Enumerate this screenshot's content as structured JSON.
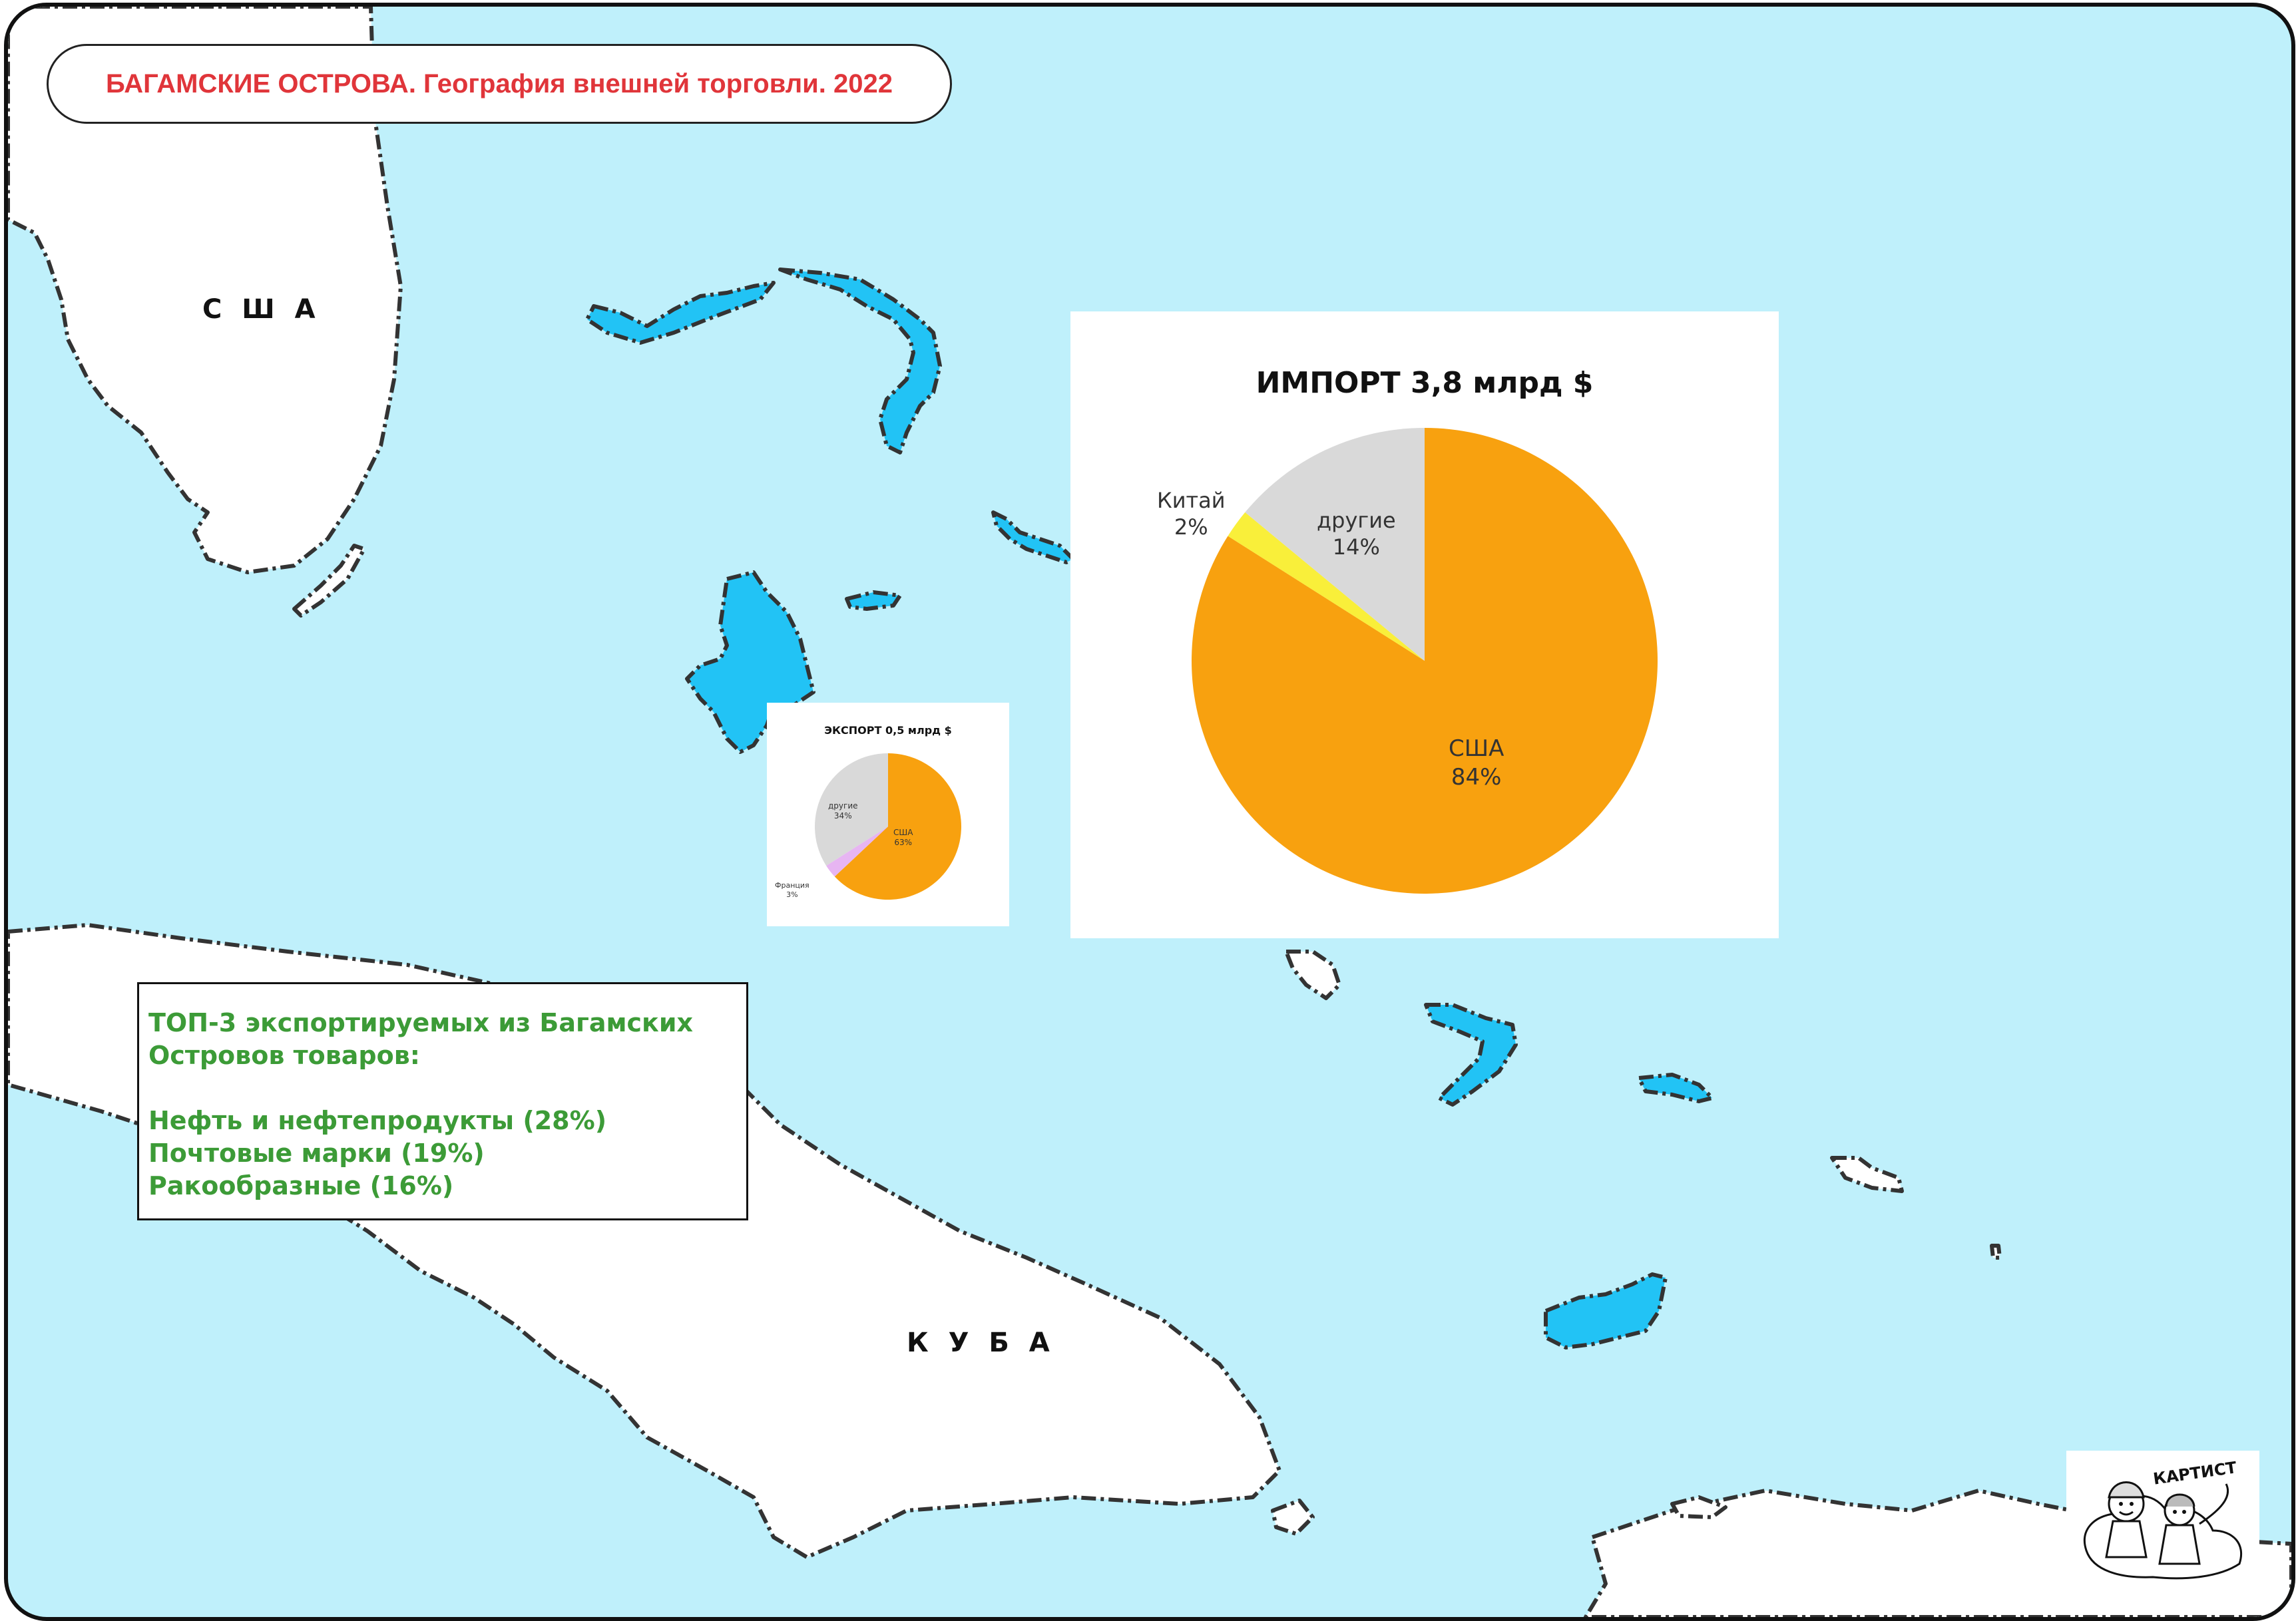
{
  "title": "БАГАМСКИЕ ОСТРОВА. География внешней торговли. 2022",
  "countries": {
    "usa": "С Ш А",
    "cuba": "К У Б А"
  },
  "export_chart": {
    "title": "ЭКСПОРТ 0,5 млрд $",
    "slices": [
      {
        "name": "США",
        "value": 63,
        "label": "63%",
        "color": "#f8a10f"
      },
      {
        "name": "Франция",
        "value": 3,
        "label": "3%",
        "color": "#e7b5f2"
      },
      {
        "name": "другие",
        "value": 34,
        "label": "34%",
        "color": "#d9d9d9"
      }
    ]
  },
  "import_chart": {
    "title": "ИМПОРТ 3,8 млрд $",
    "slices": [
      {
        "name": "США",
        "value": 84,
        "label": "84%",
        "color": "#f8a10f"
      },
      {
        "name": "Китай",
        "value": 2,
        "label": "2%",
        "color": "#f9ef3a"
      },
      {
        "name": "другие",
        "value": 14,
        "label": "14%",
        "color": "#d9d9d9"
      }
    ]
  },
  "chart_data": [
    {
      "type": "pie",
      "title": "ЭКСПОРТ 0,5 млрд $",
      "categories": [
        "США",
        "Франция",
        "другие"
      ],
      "values": [
        63,
        3,
        34
      ]
    },
    {
      "type": "pie",
      "title": "ИМПОРТ 3,8 млрд $",
      "categories": [
        "США",
        "Китай",
        "другие"
      ],
      "values": [
        84,
        2,
        14
      ]
    }
  ],
  "top_exports": {
    "heading_line1": "ТОП-3 экспортируемых из Багамских",
    "heading_line2": "Островов товаров:",
    "items": [
      "Нефть и нефтепродукты (28%)",
      "Почтовые марки (19%)",
      "Ракообразные (16%)"
    ]
  },
  "logo": {
    "text": "КАРТИСТ",
    "icon": "cartoon-characters-icon"
  },
  "colors": {
    "sea": "#bff0fb",
    "bahamas_island": "#22c3f5",
    "land": "#ffffff",
    "title_text": "#e0353a",
    "info_text": "#3c9b37"
  }
}
